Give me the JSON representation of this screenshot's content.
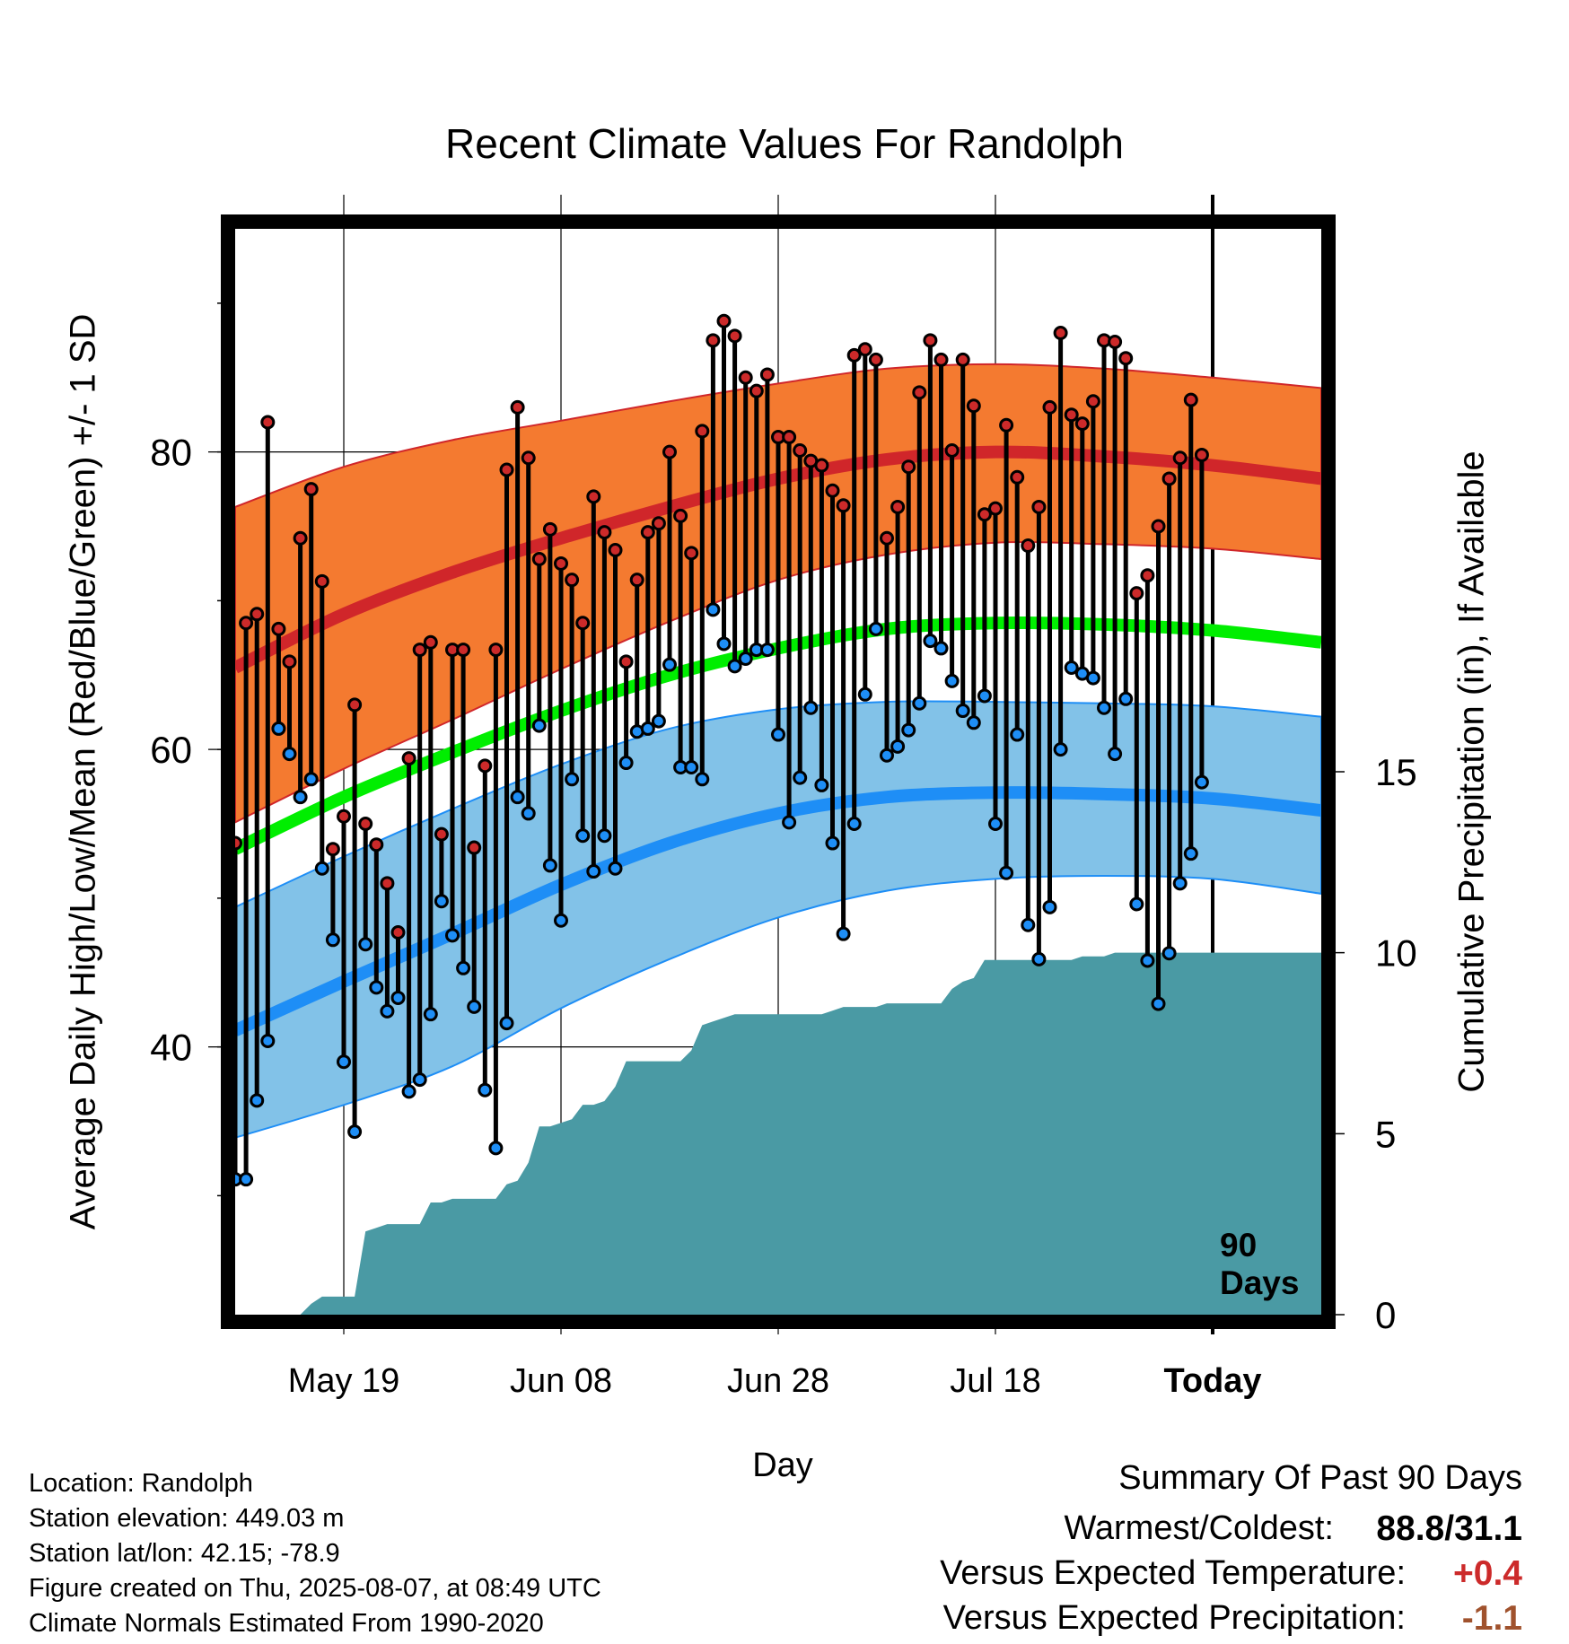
{
  "title": "Recent Climate Values For Randolph",
  "axes": {
    "y_left_label": "Average Daily High/Low/Mean (Red/Blue/Green) +/- 1 SD",
    "y_right_label": "Cumulative Precipitation (in), If Available",
    "x_label": "Day",
    "x_ticks": [
      "May 19",
      "Jun 08",
      "Jun 28",
      "Jul 18",
      "Today"
    ],
    "y_left_ticks": [
      "40",
      "60",
      "80"
    ],
    "y_right_ticks": [
      "0",
      "5",
      "10",
      "15"
    ],
    "today_marker_label": "90 Days"
  },
  "colors": {
    "high_band": "#f47a30",
    "high_line": "#d0262a",
    "mean_line": "#00ee00",
    "low_band": "#82c2e8",
    "low_line": "#1e8ef6",
    "precip": "#4a9aa4",
    "warm": "#cc2a2a",
    "dry": "#a0522d"
  },
  "info": {
    "location": "Location: Randolph",
    "elevation": "Station elevation: 449.03 m",
    "latlon": "Station lat/lon: 42.15; -78.9",
    "created": "Figure created on Thu, 2025-08-07, at 08:49 UTC",
    "normals": "Climate Normals Estimated From 1990-2020"
  },
  "summary": {
    "heading": "Summary Of Past 90 Days",
    "warmest_coldest_label": "Warmest/Coldest:",
    "warmest_coldest_value": "88.8/31.1",
    "temp_label": "Versus Expected Temperature:",
    "temp_value": "+0.4",
    "precip_label": "Versus Expected Precipitation:",
    "precip_value": "-1.1"
  },
  "chart_data": {
    "type": "line",
    "x_start": "2025-05-09",
    "x_end": "2025-08-17",
    "today": "2025-08-07",
    "ylim": [
      22,
      95
    ],
    "ylim_precip": [
      0,
      30
    ],
    "grid": true,
    "normals": {
      "dates": [
        "2025-05-09",
        "2025-05-19",
        "2025-05-29",
        "2025-06-08",
        "2025-06-18",
        "2025-06-28",
        "2025-07-08",
        "2025-07-18",
        "2025-07-28",
        "2025-08-07",
        "2025-08-17"
      ],
      "high_mean": [
        65.5,
        69.1,
        71.9,
        74.2,
        76.3,
        78.2,
        79.5,
        80.0,
        79.7,
        79.1,
        78.2
      ],
      "high_upper": [
        76.3,
        79.0,
        80.8,
        82.1,
        83.4,
        84.6,
        85.6,
        85.9,
        85.6,
        85.0,
        84.3
      ],
      "high_lower": [
        55.1,
        58.7,
        62.0,
        65.4,
        68.6,
        71.4,
        73.1,
        73.9,
        73.8,
        73.5,
        72.8
      ],
      "mean": [
        53.3,
        56.8,
        59.8,
        62.6,
        65.0,
        66.8,
        68.1,
        68.5,
        68.4,
        68.0,
        67.2
      ],
      "low_mean": [
        41.1,
        44.4,
        47.6,
        50.9,
        53.7,
        55.7,
        56.8,
        57.1,
        57.0,
        56.7,
        55.9
      ],
      "low_upper": [
        49.4,
        52.8,
        56.0,
        59.0,
        61.4,
        62.7,
        63.2,
        63.2,
        63.1,
        62.9,
        62.2
      ],
      "low_lower": [
        33.9,
        36.1,
        38.7,
        42.6,
        45.9,
        48.7,
        50.5,
        51.3,
        51.5,
        51.3,
        50.3
      ]
    },
    "daily": {
      "dates": [
        "2025-05-09",
        "2025-05-10",
        "2025-05-11",
        "2025-05-12",
        "2025-05-13",
        "2025-05-14",
        "2025-05-15",
        "2025-05-16",
        "2025-05-17",
        "2025-05-18",
        "2025-05-19",
        "2025-05-20",
        "2025-05-21",
        "2025-05-22",
        "2025-05-23",
        "2025-05-24",
        "2025-05-25",
        "2025-05-26",
        "2025-05-27",
        "2025-05-28",
        "2025-05-29",
        "2025-05-30",
        "2025-05-31",
        "2025-06-01",
        "2025-06-02",
        "2025-06-03",
        "2025-06-04",
        "2025-06-05",
        "2025-06-06",
        "2025-06-07",
        "2025-06-08",
        "2025-06-09",
        "2025-06-10",
        "2025-06-11",
        "2025-06-12",
        "2025-06-13",
        "2025-06-14",
        "2025-06-15",
        "2025-06-16",
        "2025-06-17",
        "2025-06-18",
        "2025-06-19",
        "2025-06-20",
        "2025-06-21",
        "2025-06-22",
        "2025-06-23",
        "2025-06-24",
        "2025-06-25",
        "2025-06-26",
        "2025-06-27",
        "2025-06-28",
        "2025-06-29",
        "2025-06-30",
        "2025-07-01",
        "2025-07-02",
        "2025-07-03",
        "2025-07-04",
        "2025-07-05",
        "2025-07-06",
        "2025-07-07",
        "2025-07-08",
        "2025-07-09",
        "2025-07-10",
        "2025-07-11",
        "2025-07-12",
        "2025-07-13",
        "2025-07-14",
        "2025-07-15",
        "2025-07-16",
        "2025-07-17",
        "2025-07-18",
        "2025-07-19",
        "2025-07-20",
        "2025-07-21",
        "2025-07-22",
        "2025-07-23",
        "2025-07-24",
        "2025-07-25",
        "2025-07-26",
        "2025-07-27",
        "2025-07-28",
        "2025-07-29",
        "2025-07-30",
        "2025-07-31",
        "2025-08-01",
        "2025-08-02",
        "2025-08-03",
        "2025-08-04",
        "2025-08-05",
        "2025-08-06"
      ],
      "high": [
        53.7,
        68.5,
        69.1,
        82.0,
        68.1,
        65.9,
        74.2,
        77.5,
        71.3,
        53.3,
        55.5,
        63.0,
        55.0,
        53.6,
        51.0,
        47.7,
        59.4,
        66.7,
        67.2,
        54.3,
        66.7,
        66.7,
        53.4,
        58.9,
        66.7,
        78.8,
        83.0,
        79.6,
        72.8,
        74.8,
        72.5,
        71.4,
        68.5,
        77.0,
        74.6,
        73.4,
        65.9,
        71.4,
        74.6,
        75.2,
        80.0,
        75.7,
        73.2,
        81.4,
        87.5,
        88.8,
        87.8,
        85.0,
        84.1,
        85.2,
        81.0,
        81.0,
        80.1,
        79.4,
        79.1,
        77.4,
        76.4,
        86.5,
        86.9,
        86.2,
        74.2,
        76.3,
        79.0,
        84.0,
        87.5,
        86.2,
        80.1,
        86.2,
        83.1,
        75.8,
        76.2,
        81.8,
        78.3,
        73.7,
        76.3,
        83.0,
        88.0,
        82.5,
        81.9,
        83.4,
        87.5,
        87.4,
        86.3,
        70.5,
        71.7,
        75.0,
        78.2,
        79.6,
        83.5,
        79.8
      ],
      "low": [
        31.1,
        31.1,
        36.4,
        40.4,
        61.4,
        59.7,
        56.8,
        58.0,
        52.0,
        47.2,
        39.0,
        34.3,
        46.9,
        44.0,
        42.4,
        43.3,
        37.0,
        37.8,
        42.2,
        49.8,
        47.5,
        45.3,
        42.7,
        37.1,
        33.2,
        41.6,
        56.8,
        55.7,
        61.6,
        52.2,
        48.5,
        58.0,
        54.2,
        51.8,
        54.2,
        52.0,
        59.1,
        61.2,
        61.4,
        61.9,
        65.7,
        58.8,
        58.8,
        58.0,
        69.4,
        67.1,
        65.6,
        66.1,
        66.7,
        66.7,
        61.0,
        55.1,
        58.1,
        62.8,
        57.6,
        53.7,
        47.6,
        55.0,
        63.7,
        68.1,
        59.6,
        60.2,
        61.3,
        63.1,
        67.3,
        66.8,
        64.6,
        62.6,
        61.8,
        63.6,
        55.0,
        51.7,
        61.0,
        48.2,
        45.9,
        49.4,
        60.0,
        65.5,
        65.1,
        64.8,
        62.8,
        59.7,
        63.4,
        49.6,
        45.8,
        42.9,
        46.3,
        51.0,
        53.0,
        57.8
      ]
    },
    "precip_cumulative": {
      "dates": [
        "2025-05-09",
        "2025-05-15",
        "2025-05-16",
        "2025-05-17",
        "2025-05-18",
        "2025-05-19",
        "2025-05-20",
        "2025-05-21",
        "2025-05-22",
        "2025-05-23",
        "2025-05-24",
        "2025-05-26",
        "2025-05-27",
        "2025-05-28",
        "2025-05-29",
        "2025-05-30",
        "2025-05-31",
        "2025-06-01",
        "2025-06-02",
        "2025-06-03",
        "2025-06-04",
        "2025-06-05",
        "2025-06-06",
        "2025-06-07",
        "2025-06-08",
        "2025-06-09",
        "2025-06-10",
        "2025-06-11",
        "2025-06-12",
        "2025-06-13",
        "2025-06-14",
        "2025-06-15",
        "2025-06-16",
        "2025-06-17",
        "2025-06-18",
        "2025-06-19",
        "2025-06-20",
        "2025-06-21",
        "2025-06-22",
        "2025-06-23",
        "2025-06-24",
        "2025-06-25",
        "2025-06-26",
        "2025-06-27",
        "2025-06-28",
        "2025-06-29",
        "2025-06-30",
        "2025-07-01",
        "2025-07-02",
        "2025-07-03",
        "2025-07-04",
        "2025-07-05",
        "2025-07-06",
        "2025-07-07",
        "2025-07-08",
        "2025-07-09",
        "2025-07-10",
        "2025-07-11",
        "2025-07-12",
        "2025-07-13",
        "2025-07-14",
        "2025-07-15",
        "2025-07-16",
        "2025-07-17",
        "2025-07-18",
        "2025-07-19",
        "2025-07-20",
        "2025-07-21",
        "2025-07-22",
        "2025-07-23",
        "2025-07-24",
        "2025-07-25",
        "2025-07-26",
        "2025-07-27",
        "2025-07-28",
        "2025-07-29",
        "2025-07-30",
        "2025-07-31",
        "2025-08-01",
        "2025-08-02",
        "2025-08-03",
        "2025-08-04",
        "2025-08-05",
        "2025-08-06",
        "2025-08-07",
        "2025-08-17"
      ],
      "values": [
        0,
        0,
        0.3,
        0.5,
        0.5,
        0.5,
        0.5,
        2.3,
        2.4,
        2.5,
        2.5,
        2.5,
        3.1,
        3.1,
        3.2,
        3.2,
        3.2,
        3.2,
        3.2,
        3.6,
        3.7,
        4.2,
        5.2,
        5.2,
        5.3,
        5.4,
        5.8,
        5.8,
        5.9,
        6.3,
        7.0,
        7.0,
        7.0,
        7.0,
        7.0,
        7.0,
        7.3,
        8.0,
        8.1,
        8.2,
        8.3,
        8.3,
        8.3,
        8.3,
        8.3,
        8.3,
        8.3,
        8.3,
        8.3,
        8.4,
        8.5,
        8.5,
        8.5,
        8.5,
        8.6,
        8.6,
        8.6,
        8.6,
        8.6,
        8.6,
        9.0,
        9.2,
        9.3,
        9.8,
        9.8,
        9.8,
        9.8,
        9.8,
        9.8,
        9.8,
        9.8,
        9.8,
        9.9,
        9.9,
        9.9,
        10.0,
        10.0,
        10.0,
        10.0,
        10.0,
        10.0,
        10.0,
        10.0,
        10.0,
        10.0,
        10.0
      ]
    }
  }
}
